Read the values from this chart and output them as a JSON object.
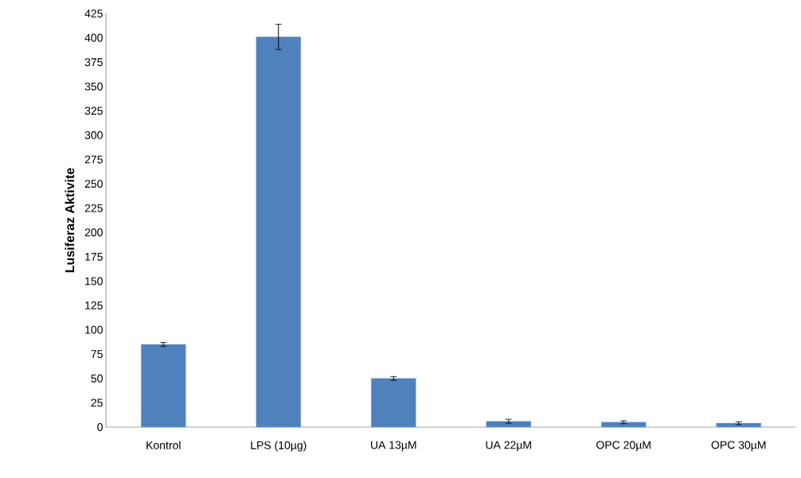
{
  "chart_data": {
    "type": "bar",
    "ylabel": "Lusiferaz Aktivite",
    "categories": [
      "Kontrol",
      "LPS (10µg)",
      "UA 13µM",
      "UA  22µM",
      "OPC 20µM",
      "OPC 30µM"
    ],
    "values": [
      85,
      401,
      50,
      6,
      5,
      4
    ],
    "errors": [
      2,
      13,
      2,
      2,
      1.5,
      1.5
    ],
    "color": "#4f81bd",
    "ylim": [
      0,
      425
    ],
    "yticks": [
      0,
      25,
      50,
      75,
      100,
      125,
      150,
      175,
      200,
      225,
      250,
      275,
      300,
      325,
      350,
      375,
      400,
      425
    ],
    "grid": false
  }
}
